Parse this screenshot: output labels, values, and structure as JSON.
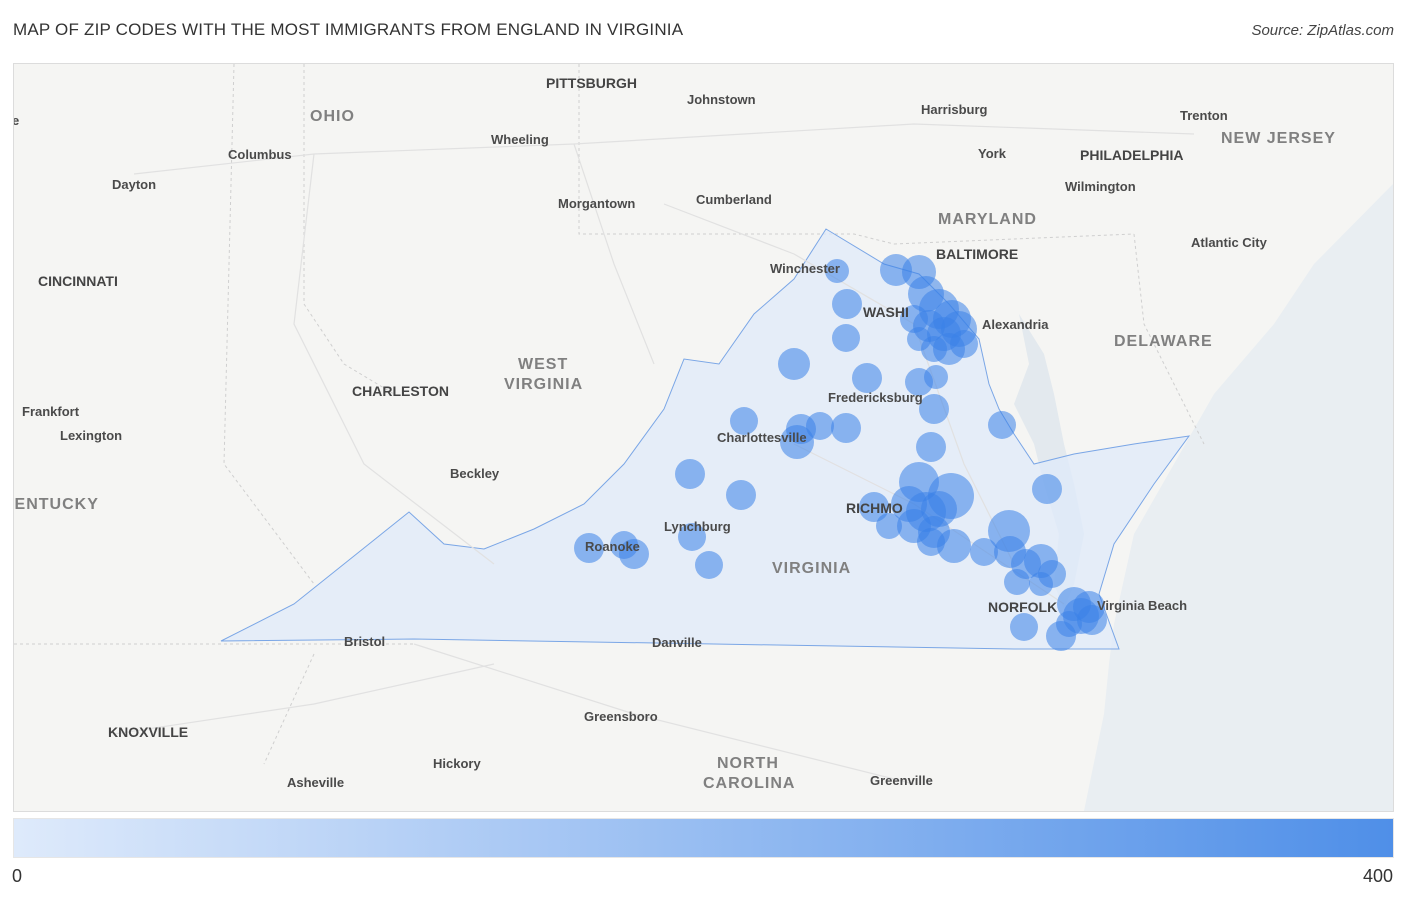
{
  "title": "MAP OF ZIP CODES WITH THE MOST IMMIGRANTS FROM ENGLAND IN VIRGINIA",
  "source": "Source: ZipAtlas.com",
  "legend": {
    "min": "0",
    "max": "400",
    "color_min": "#deeafb",
    "color_max": "#4f8fe8"
  },
  "state_labels": {
    "ohio": "OHIO",
    "west_virginia_1": "WEST",
    "west_virginia_2": "VIRGINIA",
    "maryland": "MARYLAND",
    "delaware": "DELAWARE",
    "new_jersey": "NEW JERSEY",
    "virginia": "VIRGINIA",
    "kentucky": "KENTUCKY",
    "north_carolina_1": "NORTH",
    "north_carolina_2": "CAROLINA"
  },
  "city_labels": {
    "pittsburgh": "PITTSBURGH",
    "johnstown": "Johnstown",
    "harrisburg": "Harrisburg",
    "trenton": "Trenton",
    "columbus": "Columbus",
    "wheeling": "Wheeling",
    "york": "York",
    "philadelphia": "PHILADELPHIA",
    "dayton": "Dayton",
    "morgantown": "Morgantown",
    "cumberland": "Cumberland",
    "wilmington": "Wilmington",
    "baltimore": "BALTIMORE",
    "atlantic_city": "Atlantic City",
    "cincinnati": "CINCINNATI",
    "winchester": "Winchester",
    "washington": "WASHI",
    "alexandria": "Alexandria",
    "charleston": "CHARLESTON",
    "fredericksburg": "Fredericksburg",
    "frankfort": "Frankfort",
    "lexington": "Lexington",
    "charlottesville": "Charlottesville",
    "beckley": "Beckley",
    "richmond": "RICHMO",
    "lynchburg": "Lynchburg",
    "roanoke": "Roanoke",
    "norfolk": "NORFOLK",
    "virginia_beach": "Virginia Beach",
    "bristol": "Bristol",
    "danville": "Danville",
    "greensboro": "Greensboro",
    "knoxville": "KNOXVILLE",
    "hickory": "Hickory",
    "asheville": "Asheville",
    "greenville": "Greenville",
    "left_edge": "e"
  },
  "bubble_color": "#3b82e8"
}
